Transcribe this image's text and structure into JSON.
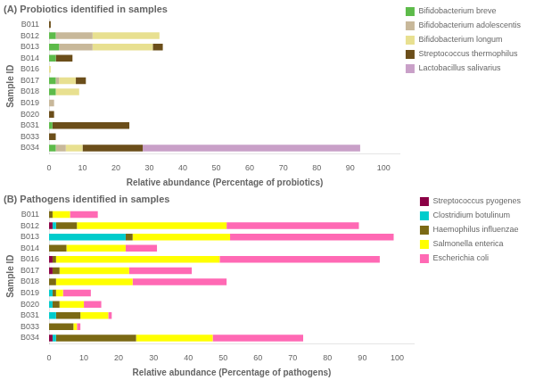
{
  "chart_data": [
    {
      "type": "bar",
      "orientation": "horizontal",
      "stacked": true,
      "title": "(A) Probiotics identified in samples",
      "xlabel": "Relative abundance (Percentage of probiotics)",
      "ylabel": "Sample ID",
      "categories": [
        "B034",
        "B033",
        "B031",
        "B020",
        "B019",
        "B018",
        "B017",
        "B016",
        "B014",
        "B013",
        "B012",
        "B011"
      ],
      "series": [
        {
          "name": "Bifidobacterium breve",
          "color": "#5DBB4A",
          "values": [
            2,
            0,
            1,
            0,
            0,
            2,
            2,
            0,
            2,
            3,
            2,
            0
          ]
        },
        {
          "name": "Bifidobacterium adolescentis",
          "color": "#C8B89A",
          "values": [
            3,
            0,
            0,
            0,
            1.5,
            0,
            1,
            0,
            0,
            10,
            11,
            0
          ]
        },
        {
          "name": "Bifidobacterium longum",
          "color": "#E8E090",
          "values": [
            5,
            0,
            0,
            0,
            0,
            7,
            5,
            0.5,
            0,
            18,
            20,
            0
          ]
        },
        {
          "name": "Streptococcus thermophilus",
          "color": "#6B4E1A",
          "values": [
            18,
            2,
            23,
            1.5,
            0,
            0,
            3,
            0,
            5,
            3,
            0,
            0.5
          ]
        },
        {
          "name": "Lactobacillus salivarius",
          "color": "#C9A0C8",
          "values": [
            65,
            0,
            0,
            0,
            0,
            0,
            0,
            0,
            0,
            0,
            0,
            0
          ]
        }
      ],
      "xlim": [
        0,
        105
      ],
      "xticks": [
        0,
        10,
        20,
        30,
        40,
        50,
        60,
        70,
        80,
        90,
        100
      ],
      "grid": false,
      "legend": "right"
    },
    {
      "type": "bar",
      "orientation": "horizontal",
      "stacked": true,
      "title": "(B) Pathogens identified in samples",
      "xlabel": "Relative abundance (Percentage of pathogens)",
      "ylabel": "Sample ID",
      "categories": [
        "B034",
        "B033",
        "B031",
        "B020",
        "B019",
        "B018",
        "B017",
        "B016",
        "B014",
        "B013",
        "B012",
        "B011"
      ],
      "series": [
        {
          "name": "Streptococcus pyogenes",
          "color": "#8B0045",
          "values": [
            1,
            0,
            0,
            0,
            0,
            0,
            1,
            1,
            0,
            0,
            1,
            0
          ]
        },
        {
          "name": "Clostridium botulinum",
          "color": "#00CCCC",
          "values": [
            1,
            0,
            2,
            1,
            1,
            0,
            0,
            0,
            0,
            22,
            1,
            0
          ]
        },
        {
          "name": "Haemophilus influenzae",
          "color": "#7B6914",
          "values": [
            23,
            7,
            7,
            2,
            1,
            2,
            2,
            1,
            5,
            2,
            6,
            1
          ]
        },
        {
          "name": "Salmonella enterica",
          "color": "#FFFF00",
          "values": [
            22,
            1,
            8,
            7,
            2,
            22,
            20,
            47,
            17,
            28,
            43,
            5
          ]
        },
        {
          "name": "Escherichia coli",
          "color": "#FF69B4",
          "values": [
            26,
            1,
            1,
            5,
            8,
            27,
            18,
            46,
            9,
            47,
            38,
            8
          ]
        }
      ],
      "xlim": [
        0,
        105
      ],
      "xticks": [
        0,
        10,
        20,
        30,
        40,
        50,
        60,
        70,
        80,
        90,
        100
      ],
      "grid": false,
      "legend": "right"
    }
  ]
}
